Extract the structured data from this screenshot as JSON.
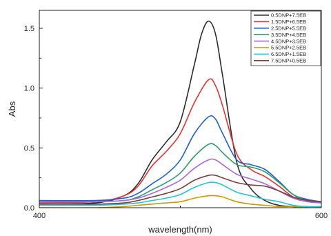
{
  "chart_data": {
    "type": "line",
    "title": "",
    "xlabel": "wavelength(nm)",
    "ylabel": "Abs",
    "xlim": [
      400,
      600
    ],
    "ylim": [
      0,
      1.65
    ],
    "x_ticks": [
      400,
      600
    ],
    "x_tick_labels": [
      "400",
      "600"
    ],
    "y_ticks": [
      0.0,
      0.5,
      1.0,
      1.5
    ],
    "y_tick_labels": [
      "0.0",
      "0.5",
      "1.0",
      "1.5"
    ],
    "grid": false,
    "legend_position": "top-right",
    "series": [
      {
        "name": "0.5DNP+7.5EB",
        "color": "#2b2b2b",
        "x": [
          400,
          440,
          460,
          470,
          480,
          490,
          500,
          510,
          515,
          520,
          525,
          530,
          540,
          550,
          560,
          570,
          580,
          590,
          600
        ],
        "y": [
          0.03,
          0.04,
          0.1,
          0.2,
          0.4,
          0.55,
          0.72,
          1.2,
          1.45,
          1.56,
          1.45,
          1.1,
          0.38,
          0.16,
          0.06,
          0.02,
          0.01,
          0.0,
          0.0
        ]
      },
      {
        "name": "1.5DNP+6.5EB",
        "color": "#e8312f",
        "x": [
          400,
          440,
          460,
          470,
          480,
          490,
          500,
          510,
          520,
          525,
          530,
          540,
          550,
          560,
          570,
          580,
          590,
          600
        ],
        "y": [
          0.04,
          0.05,
          0.1,
          0.18,
          0.35,
          0.47,
          0.62,
          0.88,
          1.07,
          1.02,
          0.85,
          0.45,
          0.32,
          0.26,
          0.18,
          0.09,
          0.06,
          0.05
        ]
      },
      {
        "name": "2.5DNP+5.5EB",
        "color": "#1f5fcf",
        "x": [
          400,
          440,
          460,
          470,
          480,
          490,
          500,
          510,
          520,
          525,
          530,
          540,
          550,
          560,
          570,
          580,
          590,
          600
        ],
        "y": [
          0.06,
          0.06,
          0.08,
          0.12,
          0.2,
          0.28,
          0.4,
          0.62,
          0.76,
          0.74,
          0.62,
          0.4,
          0.36,
          0.32,
          0.22,
          0.11,
          0.07,
          0.05
        ]
      },
      {
        "name": "3.5DNP+4.5EB",
        "color": "#2e9c6a",
        "x": [
          400,
          440,
          460,
          470,
          480,
          490,
          500,
          510,
          520,
          525,
          530,
          540,
          550,
          560,
          570,
          580,
          590,
          600
        ],
        "y": [
          0.05,
          0.05,
          0.06,
          0.09,
          0.15,
          0.21,
          0.29,
          0.43,
          0.53,
          0.52,
          0.46,
          0.36,
          0.34,
          0.3,
          0.21,
          0.11,
          0.06,
          0.04
        ]
      },
      {
        "name": "4.5DNP+3.5EB",
        "color": "#a66ad6",
        "x": [
          400,
          440,
          460,
          470,
          480,
          490,
          500,
          510,
          520,
          525,
          530,
          540,
          550,
          560,
          570,
          580,
          590,
          600
        ],
        "y": [
          0.05,
          0.05,
          0.06,
          0.08,
          0.12,
          0.17,
          0.23,
          0.33,
          0.4,
          0.4,
          0.36,
          0.28,
          0.24,
          0.2,
          0.14,
          0.08,
          0.05,
          0.04
        ]
      },
      {
        "name": "5.5DNP+2.5EB",
        "color": "#c79a00",
        "x": [
          400,
          440,
          460,
          470,
          480,
          490,
          500,
          510,
          520,
          525,
          530,
          540,
          550,
          560,
          570,
          580,
          590,
          600
        ],
        "y": [
          0.0,
          0.0,
          0.01,
          0.02,
          0.03,
          0.04,
          0.05,
          0.08,
          0.1,
          0.1,
          0.09,
          0.05,
          0.03,
          0.02,
          0.01,
          0.01,
          0.0,
          0.0
        ]
      },
      {
        "name": "6.5DNP+1.5EB",
        "color": "#22c4d4",
        "x": [
          400,
          440,
          460,
          470,
          480,
          490,
          500,
          510,
          520,
          525,
          530,
          540,
          550,
          560,
          570,
          580,
          590,
          600
        ],
        "y": [
          0.02,
          0.02,
          0.03,
          0.04,
          0.06,
          0.08,
          0.11,
          0.17,
          0.21,
          0.21,
          0.19,
          0.13,
          0.1,
          0.07,
          0.05,
          0.02,
          0.01,
          0.01
        ]
      },
      {
        "name": "7.5DNP+0.5EB",
        "color": "#7a3e3e",
        "x": [
          400,
          440,
          460,
          470,
          480,
          490,
          500,
          510,
          520,
          525,
          530,
          540,
          550,
          560,
          570,
          580,
          590,
          600
        ],
        "y": [
          0.03,
          0.03,
          0.04,
          0.06,
          0.09,
          0.12,
          0.16,
          0.23,
          0.27,
          0.27,
          0.25,
          0.21,
          0.19,
          0.18,
          0.14,
          0.09,
          0.06,
          0.05
        ]
      }
    ]
  }
}
